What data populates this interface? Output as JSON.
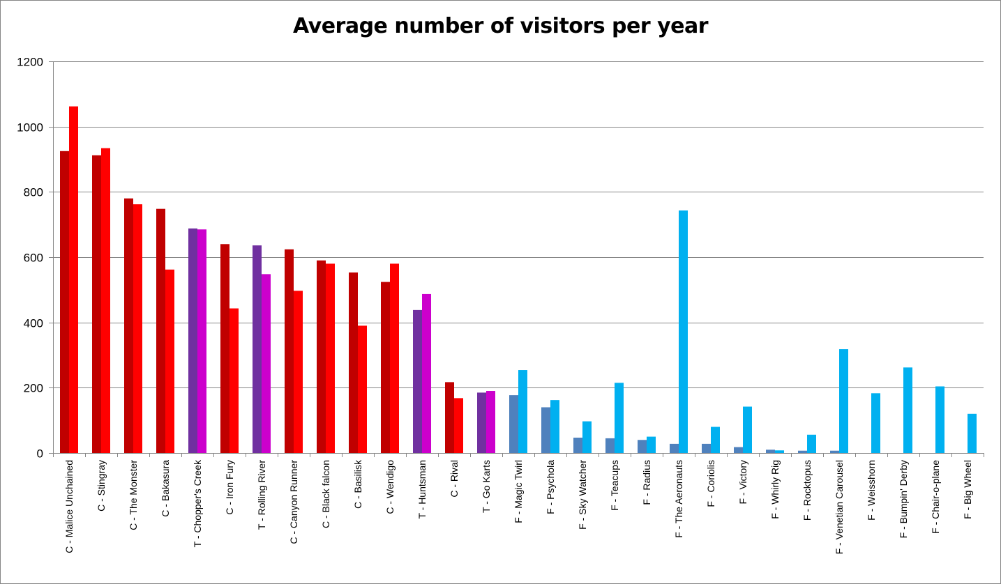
{
  "chart_data": {
    "type": "bar",
    "title": "Average number of visitors per year",
    "xlabel": "",
    "ylabel": "",
    "ylim": [
      0,
      1200
    ],
    "yticks": [
      0,
      200,
      400,
      600,
      800,
      1000,
      1200
    ],
    "grid": true,
    "legend": "none",
    "categories": [
      "C - Malice Unchained",
      "C - Stingray",
      "C - The Monster",
      "C - Bakasura",
      "T - Chopper's Creek",
      "C - Iron Fury",
      "T - Rolling River",
      "C - Canyon Runner",
      "C - Black falcon",
      "C - Basilisk",
      "C - Wendigo",
      "T - Huntsman",
      "C - Rival",
      "T - Go Karts",
      "F - Magic Twirl",
      "F - Psychola",
      "F - Sky Watcher",
      "F - Teacups",
      "F - Radius",
      "F - The Aeronauts",
      "F - Coriolis",
      "F - Victory",
      "F - Whirly Rig",
      "F - Rocktopus",
      "F - Venetian Carousel",
      "F - Weisshorn",
      "F - Bumpin' Derby",
      "F - Chair-o-plane",
      "F - Big Wheel"
    ],
    "series": [
      {
        "values": [
          925,
          912,
          780,
          748,
          688,
          640,
          636,
          624,
          590,
          553,
          524,
          438,
          217,
          185,
          177,
          140,
          47,
          45,
          40,
          28,
          28,
          18,
          10,
          7,
          7,
          0,
          0,
          0,
          0
        ]
      },
      {
        "values": [
          1062,
          934,
          762,
          562,
          685,
          443,
          548,
          497,
          580,
          390,
          580,
          487,
          168,
          190,
          254,
          162,
          97,
          215,
          50,
          743,
          80,
          142,
          8,
          56,
          318,
          183,
          262,
          204,
          120
        ]
      }
    ],
    "colors": {
      "coaster_first": "#C00000",
      "coaster_second": "#FF0000",
      "thrill_first": "#7030A0",
      "thrill_second": "#CC00CC",
      "family_first": "#4F81BD",
      "family_second": "#00B0F0",
      "gridline": "#868686",
      "axis": "#868686"
    }
  }
}
